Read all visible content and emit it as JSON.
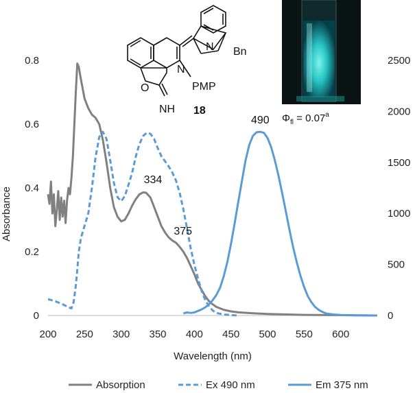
{
  "chart_data": {
    "type": "line",
    "xlabel": "Wavelength (nm)",
    "ylabel": "Absorbance",
    "xlim": [
      200,
      650
    ],
    "ylim_left": [
      0,
      0.8
    ],
    "ylim_right": [
      0,
      2500
    ],
    "x_ticks": [
      "200",
      "250",
      "300",
      "350",
      "400",
      "450",
      "500",
      "550",
      "600"
    ],
    "y_left_ticks": [
      "0",
      "0.2",
      "0.4",
      "0.6",
      "0.8"
    ],
    "y_right_ticks": [
      "0",
      "500",
      "1000",
      "1500",
      "2000",
      "2500"
    ],
    "legend_position": "bottom",
    "grid": false,
    "series": [
      {
        "name": "Absorption",
        "axis": "left",
        "color": "#808080",
        "style": "solid",
        "points": [
          [
            200,
            0.38
          ],
          [
            202,
            0.35
          ],
          [
            204,
            0.42
          ],
          [
            206,
            0.32
          ],
          [
            208,
            0.38
          ],
          [
            210,
            0.28
          ],
          [
            212,
            0.33
          ],
          [
            214,
            0.39
          ],
          [
            216,
            0.3
          ],
          [
            218,
            0.37
          ],
          [
            220,
            0.31
          ],
          [
            222,
            0.36
          ],
          [
            224,
            0.29
          ],
          [
            226,
            0.36
          ],
          [
            228,
            0.4
          ],
          [
            230,
            0.38
          ],
          [
            232,
            0.43
          ],
          [
            234,
            0.5
          ],
          [
            236,
            0.6
          ],
          [
            238,
            0.7
          ],
          [
            240,
            0.79
          ],
          [
            242,
            0.78
          ],
          [
            245,
            0.74
          ],
          [
            250,
            0.68
          ],
          [
            255,
            0.65
          ],
          [
            260,
            0.63
          ],
          [
            265,
            0.62
          ],
          [
            270,
            0.6
          ],
          [
            275,
            0.55
          ],
          [
            280,
            0.48
          ],
          [
            285,
            0.4
          ],
          [
            290,
            0.34
          ],
          [
            295,
            0.31
          ],
          [
            300,
            0.295
          ],
          [
            305,
            0.3
          ],
          [
            310,
            0.32
          ],
          [
            315,
            0.345
          ],
          [
            320,
            0.365
          ],
          [
            325,
            0.38
          ],
          [
            330,
            0.386
          ],
          [
            334,
            0.385
          ],
          [
            340,
            0.37
          ],
          [
            345,
            0.34
          ],
          [
            350,
            0.31
          ],
          [
            355,
            0.28
          ],
          [
            360,
            0.26
          ],
          [
            365,
            0.245
          ],
          [
            370,
            0.235
          ],
          [
            375,
            0.228
          ],
          [
            380,
            0.215
          ],
          [
            385,
            0.2
          ],
          [
            390,
            0.18
          ],
          [
            395,
            0.155
          ],
          [
            400,
            0.13
          ],
          [
            405,
            0.1
          ],
          [
            410,
            0.08
          ],
          [
            415,
            0.06
          ],
          [
            420,
            0.045
          ],
          [
            425,
            0.035
          ],
          [
            430,
            0.027
          ],
          [
            440,
            0.018
          ],
          [
            450,
            0.013
          ],
          [
            460,
            0.01
          ],
          [
            480,
            0.007
          ],
          [
            500,
            0.005
          ],
          [
            550,
            0.002
          ],
          [
            600,
            0.001
          ],
          [
            650,
            0.0
          ]
        ]
      },
      {
        "name": "Ex 490 nm",
        "axis": "right",
        "color": "#5b9bd5",
        "style": "dashed",
        "points": [
          [
            200,
            160
          ],
          [
            210,
            140
          ],
          [
            220,
            110
          ],
          [
            228,
            80
          ],
          [
            232,
            70
          ],
          [
            235,
            130
          ],
          [
            238,
            290
          ],
          [
            240,
            450
          ],
          [
            242,
            620
          ],
          [
            245,
            760
          ],
          [
            250,
            880
          ],
          [
            255,
            1000
          ],
          [
            260,
            1250
          ],
          [
            265,
            1550
          ],
          [
            270,
            1750
          ],
          [
            275,
            1800
          ],
          [
            280,
            1730
          ],
          [
            285,
            1520
          ],
          [
            290,
            1300
          ],
          [
            295,
            1160
          ],
          [
            300,
            1120
          ],
          [
            305,
            1170
          ],
          [
            310,
            1280
          ],
          [
            315,
            1400
          ],
          [
            320,
            1560
          ],
          [
            325,
            1680
          ],
          [
            330,
            1760
          ],
          [
            335,
            1790
          ],
          [
            340,
            1780
          ],
          [
            345,
            1730
          ],
          [
            350,
            1640
          ],
          [
            355,
            1560
          ],
          [
            360,
            1510
          ],
          [
            365,
            1460
          ],
          [
            370,
            1400
          ],
          [
            375,
            1320
          ],
          [
            380,
            1200
          ],
          [
            385,
            1040
          ],
          [
            390,
            850
          ],
          [
            395,
            660
          ],
          [
            400,
            500
          ],
          [
            405,
            360
          ],
          [
            410,
            240
          ],
          [
            415,
            150
          ],
          [
            420,
            90
          ],
          [
            425,
            50
          ],
          [
            430,
            25
          ],
          [
            440,
            10
          ],
          [
            450,
            4
          ],
          [
            460,
            0
          ]
        ]
      },
      {
        "name": "Em 375 nm",
        "axis": "right",
        "color": "#5b9bd5",
        "style": "solid",
        "points": [
          [
            385,
            20
          ],
          [
            390,
            30
          ],
          [
            395,
            25
          ],
          [
            400,
            30
          ],
          [
            405,
            45
          ],
          [
            410,
            60
          ],
          [
            415,
            80
          ],
          [
            420,
            110
          ],
          [
            425,
            150
          ],
          [
            430,
            200
          ],
          [
            435,
            270
          ],
          [
            440,
            380
          ],
          [
            445,
            520
          ],
          [
            450,
            700
          ],
          [
            455,
            900
          ],
          [
            460,
            1110
          ],
          [
            465,
            1320
          ],
          [
            470,
            1520
          ],
          [
            475,
            1670
          ],
          [
            480,
            1760
          ],
          [
            485,
            1795
          ],
          [
            490,
            1800
          ],
          [
            495,
            1790
          ],
          [
            500,
            1740
          ],
          [
            505,
            1650
          ],
          [
            510,
            1520
          ],
          [
            515,
            1370
          ],
          [
            520,
            1200
          ],
          [
            525,
            1020
          ],
          [
            530,
            840
          ],
          [
            535,
            670
          ],
          [
            540,
            520
          ],
          [
            545,
            390
          ],
          [
            550,
            280
          ],
          [
            555,
            190
          ],
          [
            560,
            130
          ],
          [
            565,
            85
          ],
          [
            570,
            55
          ],
          [
            575,
            35
          ],
          [
            580,
            20
          ],
          [
            590,
            10
          ],
          [
            600,
            5
          ],
          [
            620,
            2
          ],
          [
            650,
            0
          ]
        ]
      }
    ],
    "annotations": [
      {
        "text": "334",
        "x": 334,
        "y": 0.385,
        "axis": "left"
      },
      {
        "text": "375",
        "x": 375,
        "y": 0.228,
        "axis": "left"
      },
      {
        "text": "490",
        "x": 490,
        "y": 1800,
        "axis": "right"
      }
    ]
  },
  "structure": {
    "ring_labels": [
      "N",
      "N",
      "Bn",
      "O",
      "PMP",
      "NH"
    ],
    "compound_number": "18"
  },
  "photo": {
    "caption_symbol": "Φ",
    "caption_sub": "fl",
    "caption_value": " = 0.07",
    "caption_sup": "a"
  }
}
